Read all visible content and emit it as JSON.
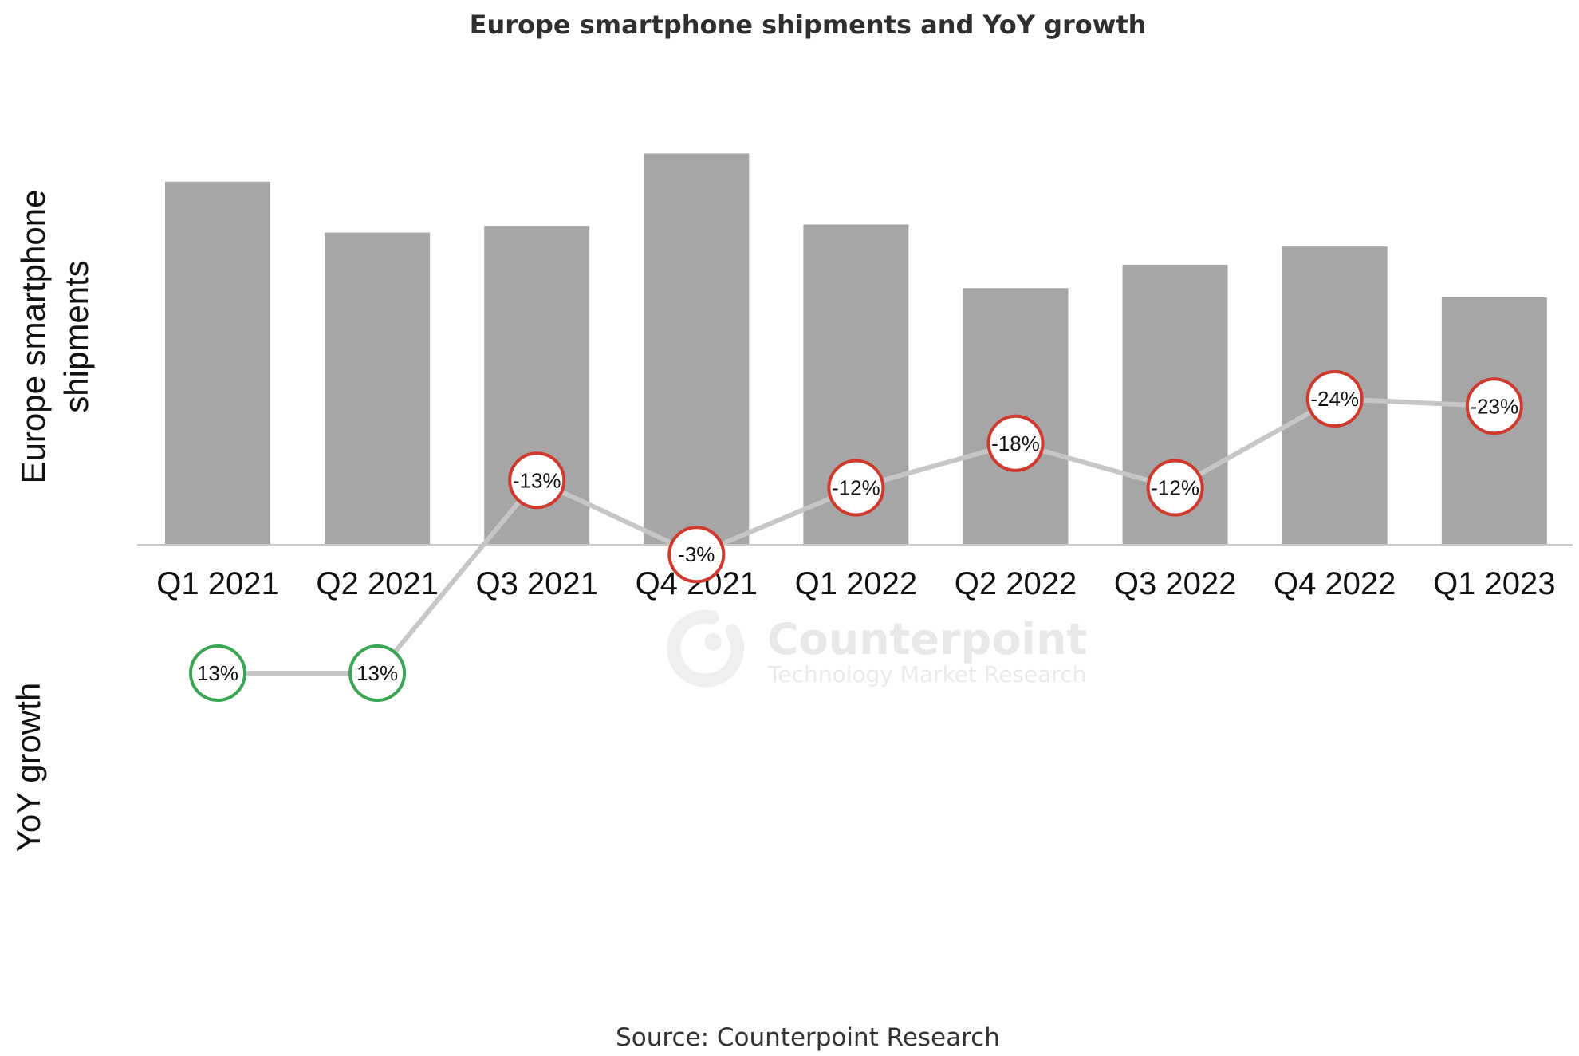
{
  "title": "Europe smartphone shipments and YoY growth",
  "source": "Source: Counterpoint Research",
  "watermark": {
    "brand": "Counterpoint",
    "tagline": "Technology Market Research"
  },
  "colors": {
    "bar": "#a6a6a6",
    "line": "#c6c6c6",
    "positive": "#3aa552",
    "negative": "#d03a2e",
    "axis": "#c8c8c8"
  },
  "chart_data": [
    {
      "type": "bar",
      "ylabel": "Europe smartphone shipments",
      "categories": [
        "Q1 2021",
        "Q2 2021",
        "Q3 2021",
        "Q4 2021",
        "Q1 2022",
        "Q2 2022",
        "Q3 2022",
        "Q4 2022",
        "Q1 2023"
      ],
      "values": [
        54.2,
        46.6,
        47.6,
        58.4,
        47.8,
        38.3,
        41.8,
        44.5,
        36.9
      ],
      "ylim": [
        0,
        60
      ],
      "grid": false,
      "value_axis_labels_shown": false
    },
    {
      "type": "line",
      "ylabel": "YoY growth",
      "categories": [
        "Q1 2021",
        "Q2 2021",
        "Q3 2021",
        "Q4 2021",
        "Q1 2022",
        "Q2 2022",
        "Q3 2022",
        "Q4 2022",
        "Q1 2023"
      ],
      "values": [
        13,
        13,
        -13,
        -3,
        -12,
        -18,
        -12,
        -24,
        -23
      ],
      "labels": [
        "13%",
        "13%",
        "-13%",
        "-3%",
        "-12%",
        "-18%",
        "-12%",
        "-24%",
        "-23%"
      ],
      "grid": false
    }
  ]
}
